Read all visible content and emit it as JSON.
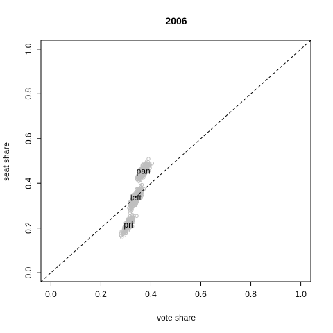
{
  "chart_data": {
    "type": "scatter",
    "title": "2006",
    "xlabel": "vote share",
    "ylabel": "seat share",
    "xlim": [
      -0.04,
      1.04
    ],
    "ylim": [
      -0.04,
      1.04
    ],
    "xticks": [
      0.0,
      0.2,
      0.4,
      0.6,
      0.8,
      1.0
    ],
    "yticks": [
      0.0,
      0.2,
      0.4,
      0.6,
      0.8,
      1.0
    ],
    "xtick_labels": [
      "0.0",
      "0.2",
      "0.4",
      "0.6",
      "0.8",
      "1.0"
    ],
    "ytick_labels": [
      "0.0",
      "0.2",
      "0.4",
      "0.6",
      "0.8",
      "1.0"
    ],
    "grid": false,
    "reference_line": {
      "style": "dashed",
      "from": [
        0,
        0
      ],
      "to": [
        1,
        1
      ]
    },
    "point_color": "#bebebe",
    "clusters": [
      {
        "label": "pan",
        "center": [
          0.37,
          0.455
        ],
        "spread": [
          0.03,
          0.05
        ],
        "tilt": 0.8,
        "n": 220
      },
      {
        "label": "left",
        "center": [
          0.34,
          0.335
        ],
        "spread": [
          0.03,
          0.06
        ],
        "tilt": 1.1,
        "n": 220
      },
      {
        "label": "pri",
        "center": [
          0.31,
          0.215
        ],
        "spread": [
          0.025,
          0.045
        ],
        "tilt": 1.0,
        "n": 220
      }
    ]
  }
}
